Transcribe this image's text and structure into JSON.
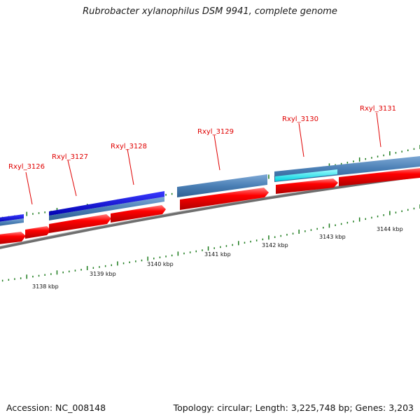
{
  "title": "Rubrobacter xylanophilus DSM 9941, complete genome",
  "footer": {
    "accession": "Accession: NC_008148",
    "topology": "Topology: circular; Length: 3,225,748 bp; Genes: 3,203"
  },
  "colors": {
    "forward_gene": "#ff0000",
    "blue_track_dark": "#0000dd",
    "blue_track_light": "#4a7fb5",
    "highlight_cyan": "#00e5ee",
    "backbone": "#777777",
    "tick": "#1a7a1a",
    "gene_label": "#e00000"
  },
  "gene_labels": [
    "Rxyl_3126",
    "Rxyl_3127",
    "Rxyl_3128",
    "Rxyl_3129",
    "Rxyl_3130",
    "Rxyl_3131"
  ],
  "kbp_labels": [
    "3138 kbp",
    "3139 kbp",
    "3140 kbp",
    "3141 kbp",
    "3142 kbp",
    "3143 kbp",
    "3144 kbp"
  ]
}
